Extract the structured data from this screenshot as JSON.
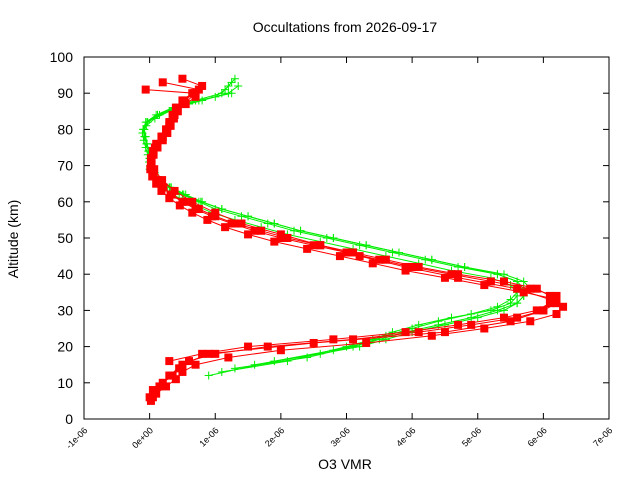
{
  "chart_data": {
    "type": "scatter",
    "title": "Occultations from 2026-09-17",
    "xlabel": "O3 VMR",
    "ylabel": "Altitude (km)",
    "xlim": [
      -1e-06,
      7e-06
    ],
    "ylim": [
      0,
      100
    ],
    "x_ticks": [
      "-1e-06",
      "0e+00",
      "1e-06",
      "2e-06",
      "3e-06",
      "4e-06",
      "5e-06",
      "6e-06",
      "7e-06"
    ],
    "y_ticks": [
      "0",
      "10",
      "20",
      "30",
      "40",
      "50",
      "60",
      "70",
      "80",
      "90",
      "100"
    ],
    "grid": false,
    "legend": "none",
    "series": [
      {
        "color": "#00ee00",
        "marker": "plus",
        "profiles": [
          {
            "y": [
              13,
              16,
              20,
              22,
              24,
              26,
              28,
              30,
              32,
              34,
              36,
              38,
              40,
              42,
              44,
              46,
              48,
              50,
              52,
              54,
              56,
              58,
              60,
              62,
              64,
              66,
              68,
              70,
              72,
              74,
              76,
              78,
              80,
              82,
              84,
              86,
              88,
              90,
              92,
              94
            ],
            "x": [
              1.1e-06,
              2.1e-06,
              3e-06,
              3.4e-06,
              3.7e-06,
              4.1e-06,
              4.6e-06,
              5.2e-06,
              5.5e-06,
              5.6e-06,
              5.6e-06,
              5.6e-06,
              5.3e-06,
              4.7e-06,
              4.2e-06,
              3.7e-06,
              3.2e-06,
              2.7e-06,
              2.2e-06,
              1.8e-06,
              1.4e-06,
              1e-06,
              7.5e-07,
              5e-07,
              3e-07,
              1.6e-07,
              6e-08,
              1e-08,
              0,
              -2e-08,
              -5e-08,
              -8e-08,
              -1e-07,
              -6e-08,
              1e-07,
              3.5e-07,
              7e-07,
              1.1e-06,
              1.2e-06,
              1.3e-06
            ]
          },
          {
            "y": [
              14,
              17,
              20,
              22,
              24,
              26,
              28,
              30,
              32,
              34,
              36,
              38,
              40,
              42,
              44,
              46,
              48,
              50,
              52,
              54,
              56,
              58,
              60,
              62,
              64,
              66,
              68,
              70,
              72,
              74,
              76,
              78,
              80,
              82,
              84,
              86,
              88,
              90,
              92
            ],
            "x": [
              1.3e-06,
              2.4e-06,
              3.1e-06,
              3.5e-06,
              3.9e-06,
              4.4e-06,
              4.9e-06,
              5.3e-06,
              5.6e-06,
              5.7e-06,
              5.8e-06,
              5.7e-06,
              5.4e-06,
              4.8e-06,
              4.3e-06,
              3.8e-06,
              3.3e-06,
              2.8e-06,
              2.3e-06,
              1.9e-06,
              1.5e-06,
              1.1e-06,
              8e-07,
              5.5e-07,
              3.3e-07,
              1.8e-07,
              8e-08,
              2e-08,
              0,
              -1e-08,
              -4e-08,
              -6e-08,
              -8e-08,
              -3e-08,
              1.5e-07,
              4e-07,
              8e-07,
              1.2e-06,
              1.35e-06
            ]
          },
          {
            "y": [
              12,
              16,
              19,
              21,
              23,
              25,
              27,
              29,
              31,
              33,
              35,
              37,
              39,
              41,
              43,
              45,
              47,
              49,
              51,
              53,
              55,
              57,
              59,
              61,
              63,
              65,
              67,
              69,
              71,
              73,
              75,
              77,
              79,
              81,
              83,
              85,
              87,
              89,
              91,
              93
            ],
            "x": [
              9e-07,
              1.9e-06,
              2.8e-06,
              3.3e-06,
              3.6e-06,
              4e-06,
              4.4e-06,
              4.9e-06,
              5.3e-06,
              5.5e-06,
              5.6e-06,
              5.5e-06,
              5.2e-06,
              4.6e-06,
              4.1e-06,
              3.6e-06,
              3.1e-06,
              2.6e-06,
              2.1e-06,
              1.7e-06,
              1.3e-06,
              9.5e-07,
              7e-07,
              4.5e-07,
              2.7e-07,
              1.4e-07,
              5e-08,
              0,
              -1e-08,
              -3e-08,
              -6e-08,
              -9e-08,
              -1.1e-07,
              -5e-08,
              8e-08,
              3e-07,
              6e-07,
              1e-06,
              1.15e-06,
              1.25e-06
            ]
          },
          {
            "y": [
              15,
              18,
              20,
              22,
              24,
              26,
              28,
              30,
              32,
              34,
              36,
              38,
              40,
              42,
              44,
              46,
              48,
              50,
              52,
              54,
              56,
              58,
              60,
              62,
              64,
              66,
              68,
              70,
              72,
              74,
              76,
              78,
              80,
              82,
              84,
              86,
              88,
              90
            ],
            "x": [
              1.6e-06,
              2.6e-06,
              3.2e-06,
              3.6e-06,
              4e-06,
              4.5e-06,
              5e-06,
              5.4e-06,
              5.6e-06,
              5.7e-06,
              5.7e-06,
              5.6e-06,
              5.3e-06,
              4.8e-06,
              4.3e-06,
              3.8e-06,
              3.3e-06,
              2.8e-06,
              2.3e-06,
              1.9e-06,
              1.5e-06,
              1.1e-06,
              7.8e-07,
              5.2e-07,
              3.1e-07,
              1.7e-07,
              7e-08,
              1e-08,
              0,
              -1e-08,
              -4e-08,
              -7e-08,
              -9e-08,
              -4e-08,
              1.2e-07,
              3.8e-07,
              7.5e-07,
              1.25e-06
            ]
          }
        ]
      },
      {
        "color": "#ff0000",
        "marker": "square",
        "profiles": [
          {
            "y": [
              6,
              8,
              10,
              12,
              14,
              16,
              18,
              20,
              22,
              24,
              26,
              28,
              30,
              32,
              34,
              36,
              38,
              40,
              42,
              44,
              46,
              48,
              50,
              52,
              54,
              56,
              58,
              60,
              62,
              64,
              66,
              68,
              70,
              72,
              74,
              76,
              78,
              80,
              82,
              84,
              86,
              88,
              90,
              92,
              94
            ],
            "x": [
              0,
              5e-08,
              2e-07,
              3.5e-07,
              4.5e-07,
              6e-07,
              1e-06,
              1.8e-06,
              3.1e-06,
              4.1e-06,
              4.9e-06,
              5.6e-06,
              6e-06,
              6.2e-06,
              6.2e-06,
              5.8e-06,
              5.2e-06,
              4.6e-06,
              4e-06,
              3.5e-06,
              3e-06,
              2.5e-06,
              2e-06,
              1.6e-06,
              1.25e-06,
              9.5e-07,
              7e-07,
              5e-07,
              3.2e-07,
              2e-07,
              1.1e-07,
              5e-08,
              2e-08,
              2e-08,
              5e-08,
              1e-07,
              1.8e-07,
              2.5e-07,
              3e-07,
              3.5e-07,
              4e-07,
              5e-07,
              6.5e-07,
              8e-07,
              5e-07
            ]
          },
          {
            "y": [
              5,
              7,
              9,
              11,
              13,
              15,
              17,
              19,
              21,
              23,
              25,
              27,
              29,
              31,
              33,
              35,
              37,
              39,
              41,
              43,
              45,
              47,
              49,
              51,
              53,
              55,
              57,
              59,
              61,
              63,
              65,
              67,
              69,
              71,
              73,
              75,
              77,
              79,
              81,
              83,
              85,
              87,
              89,
              91,
              93
            ],
            "x": [
              2e-08,
              1e-07,
              2.5e-07,
              4e-07,
              5e-07,
              7e-07,
              1.2e-06,
              2e-06,
              3.3e-06,
              4.3e-06,
              5.1e-06,
              5.8e-06,
              6.2e-06,
              6.3e-06,
              6.2e-06,
              5.7e-06,
              5.1e-06,
              4.5e-06,
              3.9e-06,
              3.4e-06,
              2.9e-06,
              2.4e-06,
              1.9e-06,
              1.5e-06,
              1.15e-06,
              8.8e-07,
              6.5e-07,
              4.6e-07,
              3e-07,
              1.8e-07,
              1e-07,
              4e-08,
              1e-08,
              2e-08,
              6e-08,
              1.2e-07,
              2e-07,
              2.7e-07,
              3.2e-07,
              3.7e-07,
              4.3e-07,
              5.5e-07,
              7e-07,
              7.5e-07,
              2e-07
            ]
          },
          {
            "y": [
              6,
              9,
              12,
              15,
              18,
              21,
              24,
              27,
              30,
              33,
              36,
              39,
              42,
              45,
              48,
              51,
              54,
              57,
              60,
              63,
              66,
              69,
              72,
              75,
              78,
              81,
              84,
              87,
              90
            ],
            "x": [
              5e-08,
              1.5e-07,
              3e-07,
              5e-07,
              9e-07,
              2.5e-06,
              4.5e-06,
              5.5e-06,
              6e-06,
              6.1e-06,
              5.6e-06,
              4.7e-06,
              3.9e-06,
              3.2e-06,
              2.6e-06,
              2e-06,
              1.4e-06,
              1e-06,
              6.5e-07,
              3.8e-07,
              1.9e-07,
              7e-08,
              2e-08,
              8e-08,
              2e-07,
              3e-07,
              3.8e-07,
              5.2e-07,
              7e-07
            ]
          },
          {
            "y": [
              16,
              18,
              20,
              22,
              24,
              26,
              28,
              30,
              32,
              34,
              36,
              38,
              40,
              42,
              44,
              46,
              48,
              50,
              52,
              54,
              56,
              58,
              60,
              62,
              64,
              66,
              68,
              70,
              72,
              74,
              76,
              78,
              80,
              82,
              84,
              86,
              88,
              90,
              91
            ],
            "x": [
              3e-07,
              8e-07,
              1.5e-06,
              2.8e-06,
              3.9e-06,
              4.7e-06,
              5.4e-06,
              5.9e-06,
              6.1e-06,
              6.1e-06,
              5.9e-06,
              5.4e-06,
              4.7e-06,
              4.1e-06,
              3.6e-06,
              3.1e-06,
              2.6e-06,
              2.1e-06,
              1.7e-06,
              1.3e-06,
              1e-06,
              7.5e-07,
              5.3e-07,
              3.4e-07,
              2.1e-07,
              1.2e-07,
              6e-08,
              3e-08,
              3e-08,
              6e-08,
              1.1e-07,
              1.9e-07,
              2.6e-07,
              3.1e-07,
              3.6e-07,
              4.2e-07,
              5.3e-07,
              6.8e-07,
              -6e-08
            ]
          }
        ]
      }
    ]
  }
}
